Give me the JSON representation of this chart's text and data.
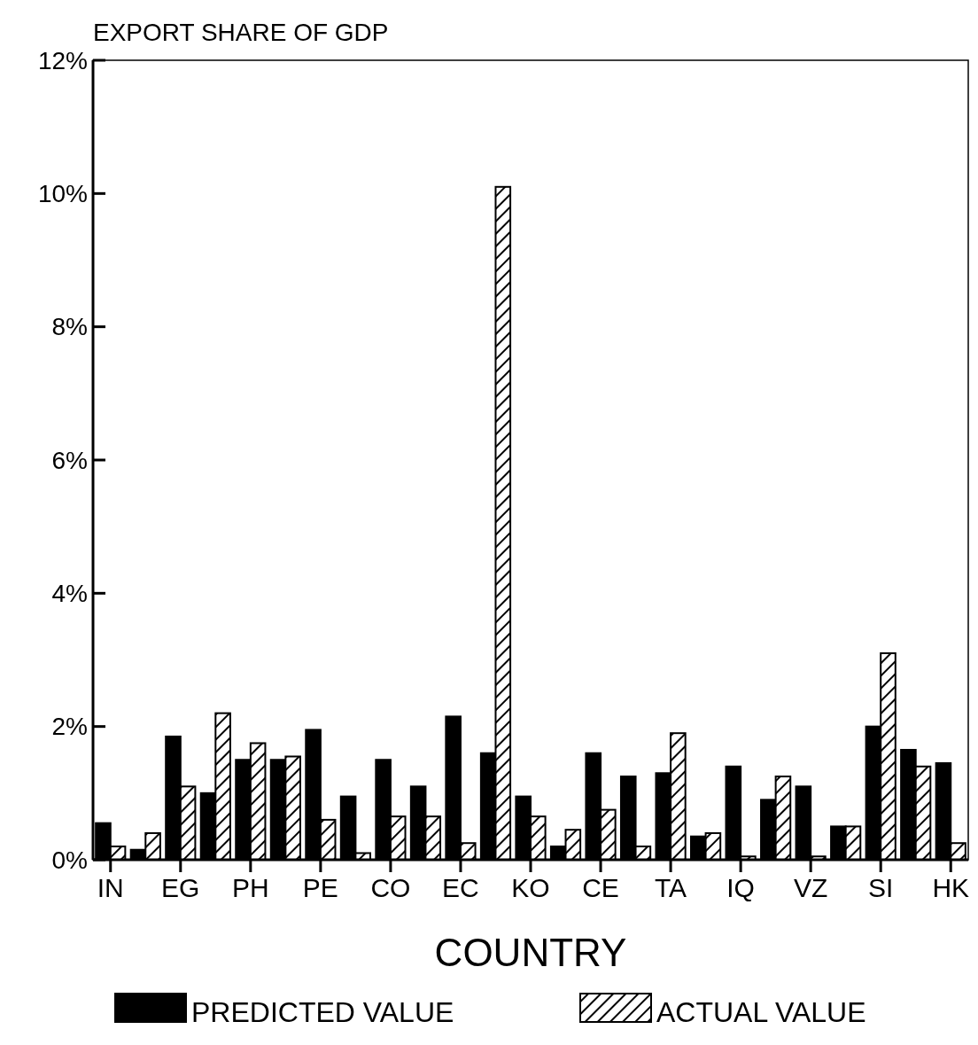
{
  "chart_data": {
    "type": "bar",
    "title": "EXPORT SHARE OF GDP",
    "xlabel": "COUNTRY",
    "categories": [
      "IN",
      null,
      "EG",
      null,
      "PH",
      null,
      "PE",
      null,
      "CO",
      null,
      "EC",
      null,
      "KO",
      null,
      "CE",
      null,
      "TA",
      null,
      "IQ",
      null,
      "VZ",
      null,
      "SI",
      null,
      "HK"
    ],
    "series": [
      {
        "name": "PREDICTED VALUE",
        "color": "#000000",
        "values": [
          0.55,
          0.15,
          1.85,
          1.0,
          1.5,
          1.5,
          1.95,
          0.95,
          1.5,
          1.1,
          2.15,
          1.6,
          0.95,
          0.2,
          1.6,
          1.25,
          1.3,
          0.35,
          1.4,
          0.9,
          1.1,
          0.5,
          2.0,
          1.65,
          1.45
        ]
      },
      {
        "name": "ACTUAL VALUE",
        "color": "#000000",
        "values": [
          0.2,
          0.4,
          1.1,
          2.2,
          1.75,
          1.55,
          0.6,
          0.1,
          0.65,
          0.65,
          0.25,
          10.1,
          0.65,
          0.45,
          0.75,
          0.2,
          1.9,
          0.4,
          0.05,
          1.25,
          0.05,
          0.5,
          3.1,
          1.4,
          0.25
        ]
      }
    ],
    "ylim": [
      0,
      12
    ],
    "yticks": [
      {
        "value": 0,
        "label": "0%"
      },
      {
        "value": 2,
        "label": "2%"
      },
      {
        "value": 4,
        "label": "4%"
      },
      {
        "value": 6,
        "label": "6%"
      },
      {
        "value": 8,
        "label": "8%"
      },
      {
        "value": 10,
        "label": "10%"
      },
      {
        "value": 12,
        "label": "12%"
      }
    ],
    "legend": "bottom"
  }
}
